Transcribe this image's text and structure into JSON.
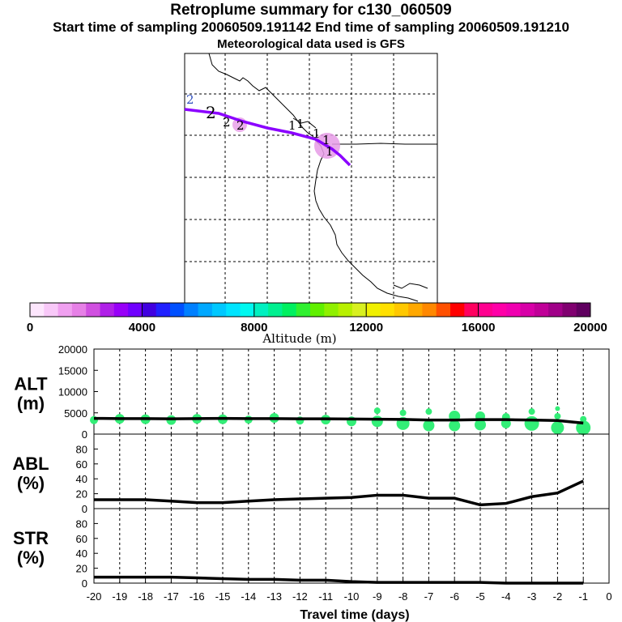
{
  "header": {
    "title": "Retroplume summary for c130_060509",
    "sampling": "Start time of sampling 20060509.191142     End time of sampling 20060509.191210",
    "met": "Meteorological data used is GFS"
  },
  "colors": {
    "trajectory": "#8b00ff",
    "plume_cloud": "#e69be6",
    "alt_dots": "#33ee77",
    "line": "#000000"
  },
  "colorbar": {
    "label": "Altitude (m)",
    "ticks": [
      "0",
      "4000",
      "8000",
      "12000",
      "16000",
      "20000"
    ],
    "colors": [
      "#fde6fd",
      "#f8c8f8",
      "#f0a0f0",
      "#e680e6",
      "#d050e0",
      "#b020e8",
      "#9800f8",
      "#7000ff",
      "#4000e0",
      "#2020ff",
      "#0050ff",
      "#0080ff",
      "#00a8ff",
      "#00c8ff",
      "#00e4ff",
      "#00f8f0",
      "#00f0c0",
      "#00f090",
      "#00f060",
      "#30f030",
      "#60f000",
      "#90f000",
      "#b8f000",
      "#d8f020",
      "#f0f000",
      "#ffe000",
      "#ffc800",
      "#ffa800",
      "#ff8800",
      "#ff5000",
      "#ff0000",
      "#ff0060",
      "#ff0090",
      "#ff00a8",
      "#f000b0",
      "#d800a8",
      "#c00098",
      "#a00088",
      "#800070",
      "#600060"
    ]
  },
  "map": {
    "markers": [
      "2",
      "2",
      "2",
      "2",
      "1",
      "1",
      "1",
      "1",
      "1"
    ]
  },
  "chart_data": [
    {
      "type": "line",
      "panel": "ALT",
      "ylabel_line1": "ALT",
      "ylabel_line2": "(m)",
      "x": [
        -20,
        -19,
        -18,
        -17,
        -16,
        -15,
        -14,
        -13,
        -12,
        -11,
        -10,
        -9,
        -8,
        -7,
        -6,
        -5,
        -4,
        -3,
        -2,
        -1
      ],
      "values": [
        3700,
        3650,
        3650,
        3600,
        3650,
        3700,
        3650,
        3650,
        3600,
        3600,
        3550,
        3500,
        3450,
        3300,
        3300,
        3400,
        3400,
        3300,
        3200,
        2600
      ],
      "ylim": [
        0,
        20000
      ],
      "yticks": [
        "20000",
        "15000",
        "10000",
        "5000",
        "0"
      ],
      "scatter": [
        {
          "x": -20,
          "y": 3300,
          "r": 5
        },
        {
          "x": -19,
          "y": 3600,
          "r": 6
        },
        {
          "x": -18,
          "y": 3500,
          "r": 6
        },
        {
          "x": -17,
          "y": 3300,
          "r": 6
        },
        {
          "x": -16,
          "y": 3600,
          "r": 6
        },
        {
          "x": -15,
          "y": 3500,
          "r": 6
        },
        {
          "x": -14,
          "y": 3400,
          "r": 5
        },
        {
          "x": -13,
          "y": 3800,
          "r": 6
        },
        {
          "x": -12,
          "y": 3200,
          "r": 5
        },
        {
          "x": -11,
          "y": 3400,
          "r": 6
        },
        {
          "x": -10,
          "y": 3000,
          "r": 6
        },
        {
          "x": -9,
          "y": 3000,
          "r": 7
        },
        {
          "x": -9,
          "y": 5500,
          "r": 4
        },
        {
          "x": -8,
          "y": 2500,
          "r": 8
        },
        {
          "x": -8,
          "y": 5000,
          "r": 4
        },
        {
          "x": -7,
          "y": 2000,
          "r": 7
        },
        {
          "x": -7,
          "y": 5300,
          "r": 4
        },
        {
          "x": -6,
          "y": 2000,
          "r": 7
        },
        {
          "x": -6,
          "y": 4200,
          "r": 7
        },
        {
          "x": -5,
          "y": 2200,
          "r": 7
        },
        {
          "x": -5,
          "y": 4200,
          "r": 6
        },
        {
          "x": -4,
          "y": 2500,
          "r": 6
        },
        {
          "x": -4,
          "y": 4000,
          "r": 5
        },
        {
          "x": -3,
          "y": 2500,
          "r": 9
        },
        {
          "x": -3,
          "y": 5300,
          "r": 4
        },
        {
          "x": -2,
          "y": 1500,
          "r": 8
        },
        {
          "x": -2,
          "y": 4200,
          "r": 4
        },
        {
          "x": -2,
          "y": 6000,
          "r": 3
        },
        {
          "x": -1,
          "y": 1500,
          "r": 9
        },
        {
          "x": -1,
          "y": 3500,
          "r": 4
        }
      ]
    },
    {
      "type": "line",
      "panel": "ABL",
      "ylabel_line1": "ABL",
      "ylabel_line2": "(%)",
      "x": [
        -20,
        -19,
        -18,
        -17,
        -16,
        -15,
        -14,
        -13,
        -12,
        -11,
        -10,
        -9,
        -8,
        -7,
        -6,
        -5,
        -4,
        -3,
        -2,
        -1
      ],
      "values": [
        12,
        12,
        12,
        10,
        8,
        8,
        10,
        12,
        13,
        14,
        15,
        18,
        18,
        14,
        14,
        5,
        7,
        16,
        21,
        37
      ],
      "ylim": [
        0,
        100
      ],
      "yticks": [
        "80",
        "60",
        "40",
        "20",
        "0"
      ]
    },
    {
      "type": "line",
      "panel": "STR",
      "ylabel_line1": "STR",
      "ylabel_line2": "(%)",
      "x": [
        -20,
        -19,
        -18,
        -17,
        -16,
        -15,
        -14,
        -13,
        -12,
        -11,
        -10,
        -9,
        -8,
        -7,
        -6,
        -5,
        -4,
        -3,
        -2,
        -1
      ],
      "values": [
        8,
        8,
        8,
        8,
        7,
        6,
        5,
        5,
        4,
        4,
        2,
        1,
        1,
        1,
        1,
        1,
        0,
        0,
        0,
        0
      ],
      "ylim": [
        0,
        100
      ],
      "yticks": [
        "80",
        "60",
        "40",
        "20",
        "0"
      ],
      "xticks": [
        "-20",
        "-19",
        "-18",
        "-17",
        "-16",
        "-15",
        "-14",
        "-13",
        "-12",
        "-11",
        "-10",
        "-9",
        "-8",
        "-7",
        "-6",
        "-5",
        "-4",
        "-3",
        "-2",
        "-1",
        "0"
      ],
      "xlabel": "Travel time (days)"
    }
  ]
}
